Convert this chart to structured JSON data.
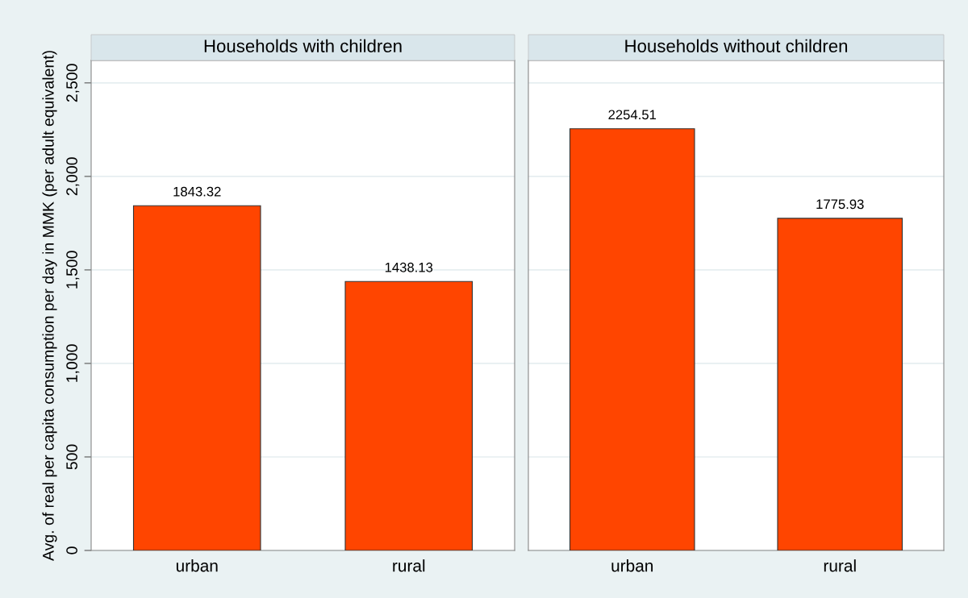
{
  "chart_data": [
    {
      "type": "bar",
      "title": "Households with children",
      "ylabel": "Avg. of real per capita consumption per day in MMK (per adult equivalent)",
      "categories": [
        "urban",
        "rural"
      ],
      "values": [
        1843.32,
        1438.13
      ],
      "color": "#ff4500",
      "ylim": [
        0,
        2620
      ],
      "yticks": [
        0,
        500,
        {
          "value": 1000,
          "label": "1,000"
        },
        {
          "value": 1500,
          "label": "1,500"
        },
        {
          "value": 2000,
          "label": "2,000"
        },
        {
          "value": 2500,
          "label": "2,500"
        }
      ],
      "grid": "y",
      "data_labels": true
    },
    {
      "type": "bar",
      "title": "Households without children",
      "categories": [
        "urban",
        "rural"
      ],
      "values": [
        2254.51,
        1775.93
      ],
      "color": "#ff4500",
      "ylim": [
        0,
        2620
      ],
      "yticks": [
        {
          "value": 0,
          "label": null
        },
        {
          "value": 500,
          "label": null
        },
        {
          "value": 1000,
          "label": null
        },
        {
          "value": 1500,
          "label": null
        },
        {
          "value": 2000,
          "label": null
        },
        {
          "value": 2500,
          "label": null
        }
      ],
      "grid": "y",
      "data_labels": true,
      "tick_labels": "x"
    }
  ]
}
